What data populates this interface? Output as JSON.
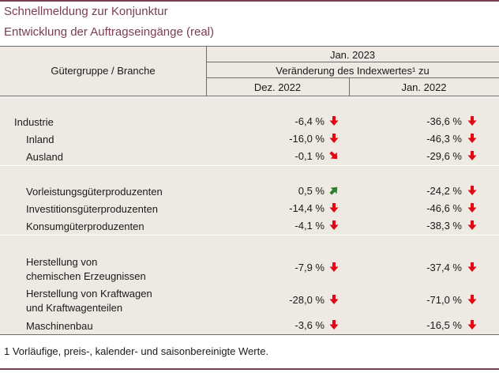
{
  "title": {
    "line1": "Schnellmeldung zur Konjunktur",
    "line2": "Entwicklung der Auftragseingänge (real)"
  },
  "header": {
    "group_label": "Gütergruppe / Branche",
    "period": "Jan. 2023",
    "change_label": "Veränderung des Indexwertes¹ zu",
    "col1": "Dez. 2022",
    "col2": "Jan. 2022"
  },
  "rows": [
    {
      "label": "Industrie",
      "v1": "-6,4 %",
      "a1": "down",
      "v2": "-36,6 %",
      "a2": "down"
    },
    {
      "label": "Inland",
      "v1": "-16,0 %",
      "a1": "down",
      "v2": "-46,3 %",
      "a2": "down"
    },
    {
      "label": "Ausland",
      "v1": "-0,1 %",
      "a1": "down-right",
      "v2": "-29,6 %",
      "a2": "down"
    },
    {
      "label": "Vorleistungsgüterproduzenten",
      "v1": "0,5 %",
      "a1": "up-right",
      "v2": "-24,2 %",
      "a2": "down"
    },
    {
      "label": "Investitionsgüterproduzenten",
      "v1": "-14,4 %",
      "a1": "down",
      "v2": "-46,6 %",
      "a2": "down"
    },
    {
      "label": "Konsumgüterproduzenten",
      "v1": "-4,1 %",
      "a1": "down",
      "v2": "-38,3 %",
      "a2": "down"
    },
    {
      "label_line1": "Herstellung von",
      "label_line2": "chemischen Erzeugnissen",
      "v1": "-7,9 %",
      "a1": "down",
      "v2": "-37,4 %",
      "a2": "down"
    },
    {
      "label_line1": "Herstellung von Kraftwagen",
      "label_line2": "und Kraftwagenteilen",
      "v1": "-28,0 %",
      "a1": "down",
      "v2": "-71,0 %",
      "a2": "down"
    },
    {
      "label": "Maschinenbau",
      "v1": "-3,6 %",
      "a1": "down",
      "v2": "-16,5 %",
      "a2": "down"
    }
  ],
  "footnote": "1 Vorläufige, preis-, kalender- und saisonbereinigte Werte.",
  "colors": {
    "accent": "#7a3d52",
    "shade": "#efe9e3",
    "down_arrow": "#e30613",
    "up_arrow": "#2e7d32"
  },
  "icons": {
    "down": "arrow-down-icon",
    "down-right": "arrow-down-right-icon",
    "up-right": "arrow-up-right-icon"
  }
}
